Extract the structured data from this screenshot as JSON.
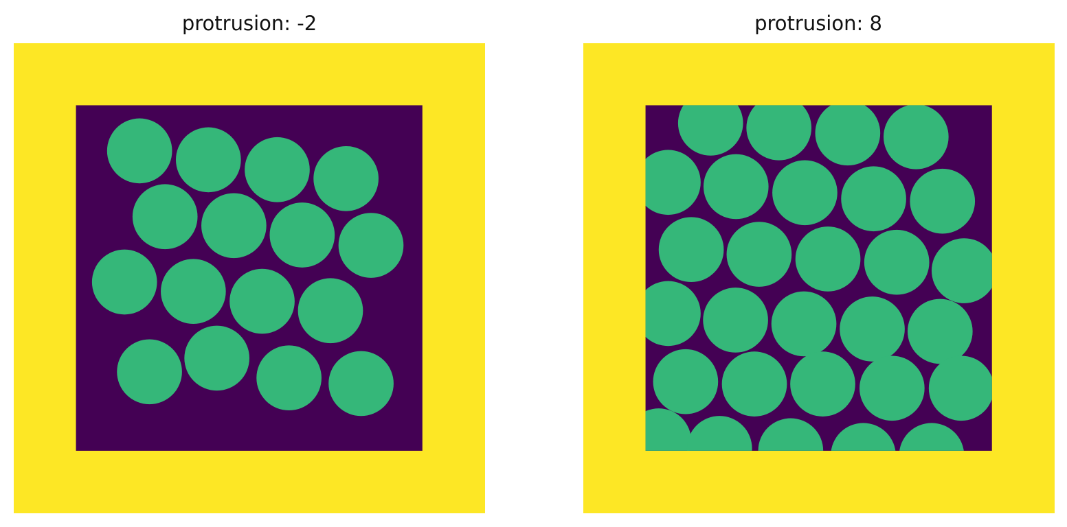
{
  "colors": {
    "frame": "#FDE725",
    "background": "#440154",
    "particle": "#35B779"
  },
  "panels": [
    {
      "title": "protrusion: -2",
      "protrusion": -2,
      "image_extent": [
        0,
        1
      ],
      "inner_region": [
        0.132,
        0.867
      ],
      "particle_radius": 0.069,
      "particles": [
        [
          0.267,
          0.229
        ],
        [
          0.413,
          0.248
        ],
        [
          0.559,
          0.269
        ],
        [
          0.705,
          0.288
        ],
        [
          0.321,
          0.369
        ],
        [
          0.467,
          0.388
        ],
        [
          0.612,
          0.408
        ],
        [
          0.758,
          0.43
        ],
        [
          0.235,
          0.508
        ],
        [
          0.381,
          0.528
        ],
        [
          0.527,
          0.549
        ],
        [
          0.672,
          0.569
        ],
        [
          0.288,
          0.699
        ],
        [
          0.431,
          0.67
        ],
        [
          0.584,
          0.712
        ],
        [
          0.737,
          0.724
        ]
      ]
    },
    {
      "title": "protrusion: 8",
      "protrusion": 8,
      "image_extent": [
        0,
        1
      ],
      "inner_region": [
        0.132,
        0.867
      ],
      "particle_radius": 0.069,
      "particles": [
        [
          0.27,
          0.17
        ],
        [
          0.415,
          0.18
        ],
        [
          0.561,
          0.191
        ],
        [
          0.706,
          0.199
        ],
        [
          0.18,
          0.296
        ],
        [
          0.324,
          0.305
        ],
        [
          0.47,
          0.318
        ],
        [
          0.616,
          0.331
        ],
        [
          0.762,
          0.336
        ],
        [
          0.229,
          0.439
        ],
        [
          0.373,
          0.449
        ],
        [
          0.519,
          0.459
        ],
        [
          0.665,
          0.466
        ],
        [
          0.808,
          0.484
        ],
        [
          0.18,
          0.575
        ],
        [
          0.323,
          0.589
        ],
        [
          0.468,
          0.597
        ],
        [
          0.613,
          0.608
        ],
        [
          0.757,
          0.613
        ],
        [
          0.217,
          0.72
        ],
        [
          0.363,
          0.725
        ],
        [
          0.508,
          0.725
        ],
        [
          0.655,
          0.734
        ],
        [
          0.802,
          0.734
        ],
        [
          0.16,
          0.846
        ],
        [
          0.289,
          0.862
        ],
        [
          0.44,
          0.867
        ],
        [
          0.594,
          0.877
        ],
        [
          0.739,
          0.877
        ]
      ]
    }
  ]
}
